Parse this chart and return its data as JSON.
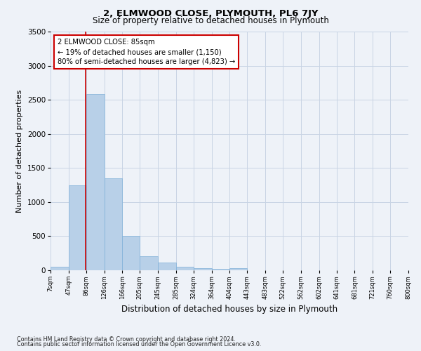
{
  "title": "2, ELMWOOD CLOSE, PLYMOUTH, PL6 7JY",
  "subtitle": "Size of property relative to detached houses in Plymouth",
  "xlabel": "Distribution of detached houses by size in Plymouth",
  "ylabel": "Number of detached properties",
  "bin_edges": [
    7,
    47,
    86,
    126,
    166,
    205,
    245,
    285,
    324,
    364,
    404,
    443,
    483,
    522,
    562,
    602,
    641,
    681,
    721,
    760,
    800
  ],
  "bar_heights": [
    50,
    1250,
    2580,
    1350,
    500,
    210,
    110,
    55,
    30,
    25,
    30,
    0,
    0,
    0,
    0,
    0,
    0,
    0,
    0,
    0
  ],
  "bar_color": "#b8d0e8",
  "bar_edge_color": "#7fb0d8",
  "grid_color": "#c8d4e4",
  "property_size": 85,
  "vline_color": "#cc0000",
  "annotation_line1": "2 ELMWOOD CLOSE: 85sqm",
  "annotation_line2": "← 19% of detached houses are smaller (1,150)",
  "annotation_line3": "80% of semi-detached houses are larger (4,823) →",
  "annotation_box_color": "#ffffff",
  "annotation_box_edge_color": "#cc0000",
  "ylim": [
    0,
    3500
  ],
  "yticks": [
    0,
    500,
    1000,
    1500,
    2000,
    2500,
    3000,
    3500
  ],
  "tick_labels": [
    "7sqm",
    "47sqm",
    "86sqm",
    "126sqm",
    "166sqm",
    "205sqm",
    "245sqm",
    "285sqm",
    "324sqm",
    "364sqm",
    "404sqm",
    "443sqm",
    "483sqm",
    "522sqm",
    "562sqm",
    "602sqm",
    "641sqm",
    "681sqm",
    "721sqm",
    "760sqm",
    "800sqm"
  ],
  "footer_line1": "Contains HM Land Registry data © Crown copyright and database right 2024.",
  "footer_line2": "Contains public sector information licensed under the Open Government Licence v3.0.",
  "background_color": "#eef2f8",
  "title_fontsize": 9.5,
  "subtitle_fontsize": 8.5
}
